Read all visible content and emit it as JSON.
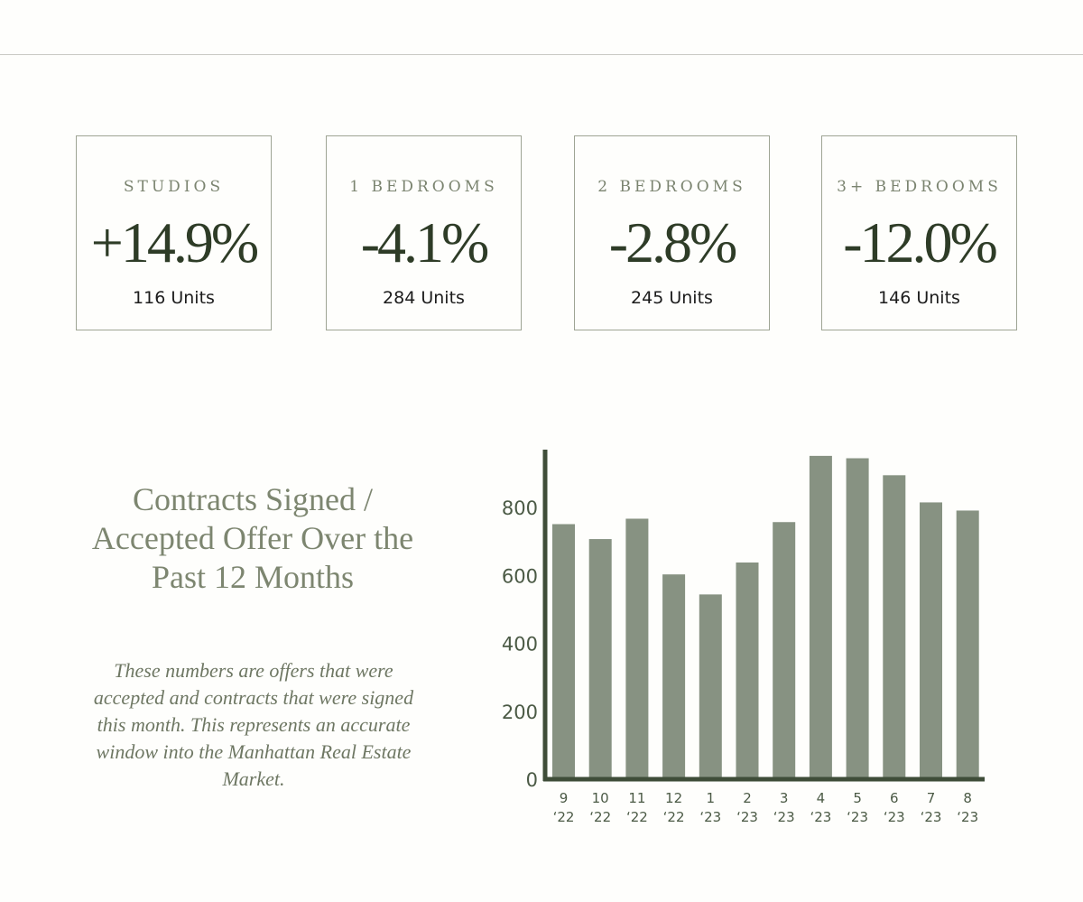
{
  "stats": [
    {
      "label": "STUDIOS",
      "value": "+14.9%",
      "units": "116 Units"
    },
    {
      "label": "1 BEDROOMS",
      "value": "-4.1%",
      "units": "284 Units"
    },
    {
      "label": "2 BEDROOMS",
      "value": "-2.8%",
      "units": "245 Units"
    },
    {
      "label": "3+ BEDROOMS",
      "value": "-12.0%",
      "units": "146 Units"
    }
  ],
  "section": {
    "title": "Contracts Signed / Accepted Offer Over the Past 12 Months",
    "description": "These numbers are offers that were accepted and contracts that were signed this month. This represents an accurate window into the Manhattan Real Estate Market."
  },
  "colors": {
    "bar": "#879282",
    "axis": "#3f4d39",
    "value_text": "#2e3c27",
    "accent": "#7d8670"
  },
  "chart_data": {
    "type": "bar",
    "categories": [
      "9 ‘22",
      "10 ‘22",
      "11 ‘22",
      "12 ‘22",
      "1 ‘23",
      "2 ‘23",
      "3 ‘23",
      "4 ‘23",
      "5 ‘23",
      "6 ‘23",
      "7 ‘23",
      "8 ‘23"
    ],
    "category_lines": [
      [
        "9",
        "‘22"
      ],
      [
        "10",
        "‘22"
      ],
      [
        "11",
        "‘22"
      ],
      [
        "12",
        "‘22"
      ],
      [
        "1",
        "‘23"
      ],
      [
        "2",
        "‘23"
      ],
      [
        "3",
        "‘23"
      ],
      [
        "4",
        "‘23"
      ],
      [
        "5",
        "‘23"
      ],
      [
        "6",
        "‘23"
      ],
      [
        "7",
        "‘23"
      ],
      [
        "8",
        "‘23"
      ]
    ],
    "values": [
      751,
      707,
      767,
      603,
      544,
      638,
      757,
      952,
      945,
      895,
      815,
      791
    ],
    "yticks": [
      0,
      200,
      400,
      600,
      800
    ],
    "ylim": [
      0,
      965
    ],
    "title": "",
    "xlabel": "",
    "ylabel": "",
    "grid": false,
    "legend": "none"
  }
}
